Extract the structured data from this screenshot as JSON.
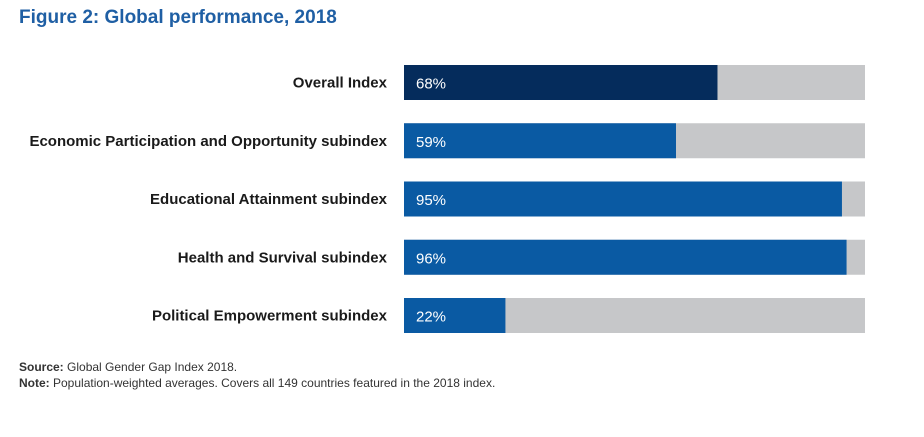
{
  "figure": {
    "title": "Figure 2: Global performance, 2018"
  },
  "colors": {
    "title": "#1f5fa4",
    "track": "#c6c7c9",
    "highlight_bar": "#052c5c",
    "bar": "#0a5aa3",
    "value_text": "#ffffff"
  },
  "chart_data": {
    "type": "bar",
    "orientation": "horizontal",
    "categories": [
      "Overall Index",
      "Economic Participation and Opportunity subindex",
      "Educational Attainment subindex",
      "Health and Survival subindex",
      "Political Empowerment subindex"
    ],
    "values": [
      68,
      59,
      95,
      96,
      22
    ],
    "value_labels": [
      "68%",
      "59%",
      "95%",
      "96%",
      "22%"
    ],
    "xlim": [
      0,
      100
    ],
    "grid": false,
    "legend": "none"
  },
  "notes": {
    "source_label": "Source:",
    "source_text": " Global Gender Gap Index 2018.",
    "note_label": "Note:",
    "note_text": " Population-weighted averages. Covers all 149 countries featured in the 2018 index."
  }
}
